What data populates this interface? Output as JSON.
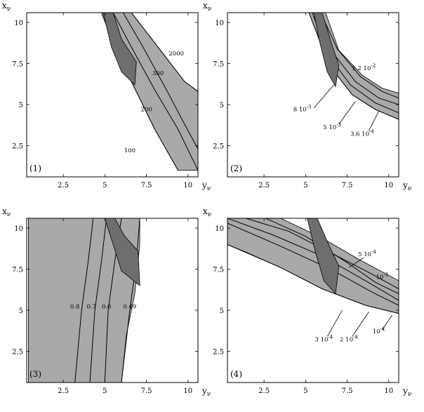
{
  "chart_data": [
    {
      "type": "contour",
      "panel": "(1)",
      "xlabel": "y",
      "xlabel_sub": "ν",
      "ylabel": "x",
      "ylabel_sub": "ν",
      "xlim": [
        0.3,
        10.6
      ],
      "ylim": [
        0.6,
        10.6
      ],
      "xticks": [
        "2.5",
        "5",
        "7.5",
        "10"
      ],
      "yticks": [
        "2.5",
        "5",
        "7.5",
        "10"
      ],
      "band": [
        [
          4.8,
          10.6
        ],
        [
          6.6,
          10.6
        ],
        [
          8.2,
          8.5
        ],
        [
          9.8,
          6.4
        ],
        [
          10.6,
          5.8
        ],
        [
          10.6,
          1.0
        ],
        [
          9.4,
          1.0
        ],
        [
          8.0,
          3.5
        ],
        [
          6.6,
          6.4
        ],
        [
          5.6,
          8.5
        ],
        [
          4.8,
          10.6
        ]
      ],
      "dark_region": [
        [
          4.9,
          10.6
        ],
        [
          5.5,
          10.6
        ],
        [
          6.0,
          9.0
        ],
        [
          6.9,
          7.6
        ],
        [
          6.8,
          6.2
        ],
        [
          6.0,
          7.0
        ],
        [
          5.4,
          8.5
        ],
        [
          4.9,
          10.6
        ]
      ],
      "contours": [
        {
          "label": "2000",
          "points": [
            [
              6.6,
              10.6
            ],
            [
              8.2,
              8.5
            ],
            [
              9.8,
              6.4
            ],
            [
              10.6,
              5.8
            ]
          ],
          "label_at": [
            9.3,
            8.0
          ]
        },
        {
          "label": "300",
          "points": [
            [
              6.1,
              10.6
            ],
            [
              7.3,
              8.5
            ],
            [
              8.6,
              6.1
            ],
            [
              9.8,
              3.8
            ],
            [
              10.6,
              2.3
            ]
          ],
          "label_at": [
            8.2,
            6.8
          ]
        },
        {
          "label": "200",
          "points": [
            [
              5.5,
              10.6
            ],
            [
              6.6,
              8.5
            ],
            [
              8.0,
              5.9
            ],
            [
              9.4,
              3.5
            ],
            [
              10.6,
              1.0
            ]
          ],
          "label_at": [
            7.5,
            4.6
          ]
        },
        {
          "label": "100",
          "points": [
            [
              4.8,
              10.6
            ],
            [
              5.6,
              8.5
            ],
            [
              6.6,
              6.4
            ],
            [
              8.0,
              3.5
            ],
            [
              9.4,
              1.0
            ]
          ],
          "label_at": [
            6.5,
            2.1
          ]
        }
      ]
    },
    {
      "type": "contour",
      "panel": "(2)",
      "xlabel": "y",
      "xlabel_sub": "ν",
      "ylabel": "x",
      "ylabel_sub": "ν",
      "xlim": [
        0.3,
        10.6
      ],
      "ylim": [
        0.6,
        10.6
      ],
      "xticks": [
        "2.5",
        "5",
        "7.5",
        "10"
      ],
      "yticks": [
        "2.5",
        "5",
        "7.5",
        "10"
      ],
      "band": [
        [
          5.2,
          10.6
        ],
        [
          6.2,
          10.6
        ],
        [
          7.0,
          8.3
        ],
        [
          8.4,
          6.8
        ],
        [
          9.6,
          6.0
        ],
        [
          10.6,
          5.7
        ],
        [
          10.6,
          4.1
        ],
        [
          9.2,
          4.7
        ],
        [
          7.8,
          5.6
        ],
        [
          6.5,
          7.3
        ],
        [
          5.8,
          9.0
        ],
        [
          5.2,
          10.6
        ]
      ],
      "dark_region": [
        [
          5.5,
          10.6
        ],
        [
          6.0,
          10.6
        ],
        [
          6.5,
          8.9
        ],
        [
          7.0,
          7.4
        ],
        [
          6.8,
          6.1
        ],
        [
          6.3,
          7.0
        ],
        [
          5.8,
          9.0
        ],
        [
          5.5,
          10.6
        ]
      ],
      "contours": [
        {
          "label": "1.2 10",
          "exp": "-2",
          "points": [
            [
              5.9,
              10.6
            ],
            [
              6.9,
              8.4
            ],
            [
              8.3,
              6.7
            ],
            [
              9.6,
              5.8
            ],
            [
              10.6,
              5.4
            ]
          ],
          "label_at": [
            8.5,
            7.1
          ]
        },
        {
          "label": "8 10",
          "exp": "-3",
          "points": [
            [
              5.6,
              10.6
            ],
            [
              6.6,
              8.2
            ],
            [
              8.0,
              6.4
            ],
            [
              9.4,
              5.4
            ],
            [
              10.6,
              5.0
            ]
          ],
          "label_at": [
            4.8,
            4.6
          ]
        },
        {
          "label": "5 10",
          "exp": "-3",
          "points": [
            [
              5.4,
              10.6
            ],
            [
              6.3,
              8.1
            ],
            [
              7.7,
              6.2
            ],
            [
              9.2,
              5.1
            ],
            [
              10.6,
              4.5
            ]
          ],
          "label_at": [
            6.6,
            3.5
          ]
        },
        {
          "label": "3.6 10",
          "exp": "-4",
          "points": [
            [
              5.2,
              10.6
            ],
            [
              5.8,
              9.0
            ],
            [
              6.5,
              7.3
            ],
            [
              7.8,
              5.6
            ],
            [
              9.2,
              4.7
            ],
            [
              10.6,
              4.1
            ]
          ],
          "label_at": [
            8.4,
            3.1
          ]
        }
      ]
    },
    {
      "type": "contour",
      "panel": "(3)",
      "xlabel": "y",
      "xlabel_sub": "ν",
      "ylabel": "x",
      "ylabel_sub": "ν",
      "xlim": [
        0.3,
        10.6
      ],
      "ylim": [
        0.6,
        10.6
      ],
      "xticks": [
        "2.5",
        "5",
        "7.5",
        "10"
      ],
      "yticks": [
        "2.5",
        "5",
        "7.5",
        "10"
      ],
      "band": [
        [
          0.4,
          10.6
        ],
        [
          7.1,
          10.6
        ],
        [
          7.1,
          9.0
        ],
        [
          6.8,
          6.0
        ],
        [
          6.3,
          3.5
        ],
        [
          6.0,
          0.6
        ],
        [
          0.4,
          0.6
        ],
        [
          0.4,
          10.6
        ]
      ],
      "dark_region": [
        [
          5.0,
          10.6
        ],
        [
          5.6,
          10.6
        ],
        [
          6.2,
          9.5
        ],
        [
          7.0,
          8.6
        ],
        [
          7.1,
          6.5
        ],
        [
          6.0,
          7.4
        ],
        [
          5.5,
          9.0
        ],
        [
          5.0,
          10.6
        ]
      ],
      "contours": [
        {
          "label": "0.8",
          "points": [
            [
              4.3,
              10.6
            ],
            [
              4.0,
              8.0
            ],
            [
              3.6,
              5.0
            ],
            [
              3.2,
              0.6
            ]
          ],
          "label_at": [
            3.2,
            5.1
          ]
        },
        {
          "label": "0.7",
          "points": [
            [
              5.1,
              10.6
            ],
            [
              4.8,
              8.0
            ],
            [
              4.4,
              5.0
            ],
            [
              4.1,
              0.6
            ]
          ],
          "label_at": [
            4.2,
            5.1
          ]
        },
        {
          "label": "0.6",
          "points": [
            [
              6.0,
              10.6
            ],
            [
              5.6,
              8.0
            ],
            [
              5.2,
              5.0
            ],
            [
              5.0,
              0.6
            ]
          ],
          "label_at": [
            5.1,
            5.1
          ]
        },
        {
          "label": "0.49",
          "points": [
            [
              7.1,
              10.6
            ],
            [
              6.9,
              8.0
            ],
            [
              6.5,
              5.0
            ],
            [
              6.0,
              0.6
            ]
          ],
          "label_at": [
            6.5,
            5.1
          ]
        }
      ]
    },
    {
      "type": "contour",
      "panel": "(4)",
      "xlabel": "y",
      "xlabel_sub": "ν",
      "ylabel": "x",
      "ylabel_sub": "ν",
      "xlim": [
        0.3,
        10.6
      ],
      "ylim": [
        0.6,
        10.6
      ],
      "xticks": [
        "2.5",
        "5",
        "7.5",
        "10"
      ],
      "yticks": [
        "2.5",
        "5",
        "7.5",
        "10"
      ],
      "band": [
        [
          0.3,
          10.6
        ],
        [
          3.5,
          10.6
        ],
        [
          6.0,
          9.4
        ],
        [
          8.2,
          8.1
        ],
        [
          10.6,
          6.8
        ],
        [
          10.6,
          4.8
        ],
        [
          8.6,
          5.3
        ],
        [
          6.0,
          6.3
        ],
        [
          3.5,
          7.6
        ],
        [
          1.5,
          8.5
        ],
        [
          0.3,
          9.0
        ],
        [
          0.3,
          10.6
        ]
      ],
      "dark_region": [
        [
          5.1,
          10.6
        ],
        [
          5.7,
          10.6
        ],
        [
          6.3,
          9.2
        ],
        [
          7.0,
          7.7
        ],
        [
          6.8,
          6.0
        ],
        [
          6.1,
          6.8
        ],
        [
          5.6,
          8.5
        ],
        [
          5.1,
          10.6
        ]
      ],
      "contours": [
        {
          "label": "5 10",
          "exp": "-4",
          "points": [
            [
              1.4,
              10.6
            ],
            [
              4.0,
              9.8
            ],
            [
              6.5,
              8.5
            ],
            [
              8.8,
              7.3
            ],
            [
              10.6,
              6.3
            ]
          ],
          "label_at": [
            8.7,
            8.3
          ]
        },
        {
          "label": "10",
          "exp": "-3",
          "points": [
            [
              2.6,
              10.6
            ],
            [
              5.0,
              9.5
            ],
            [
              7.5,
              7.9
            ],
            [
              9.2,
              6.7
            ],
            [
              10.6,
              6.0
            ]
          ],
          "label_at": [
            9.6,
            6.9
          ]
        },
        {
          "label": "3 10",
          "exp": "-4",
          "points": [
            [
              0.3,
              10.6
            ],
            [
              3.0,
              9.6
            ],
            [
              6.0,
              8.3
            ],
            [
              8.6,
              6.8
            ],
            [
              10.6,
              5.6
            ]
          ],
          "label_at": [
            6.1,
            3.1
          ]
        },
        {
          "label": "2 10",
          "exp": "-4",
          "points": [
            [
              0.3,
              10.3
            ],
            [
              3.5,
              8.9
            ],
            [
              6.5,
              7.5
            ],
            [
              9.0,
              6.1
            ],
            [
              10.6,
              5.3
            ]
          ],
          "label_at": [
            7.6,
            3.1
          ]
        },
        {
          "label": "10",
          "exp": "-4",
          "points": [
            [
              0.3,
              9.0
            ],
            [
              3.5,
              7.6
            ],
            [
              6.0,
              6.3
            ],
            [
              8.6,
              5.3
            ],
            [
              10.6,
              4.8
            ]
          ],
          "label_at": [
            9.4,
            3.6
          ]
        }
      ]
    }
  ]
}
